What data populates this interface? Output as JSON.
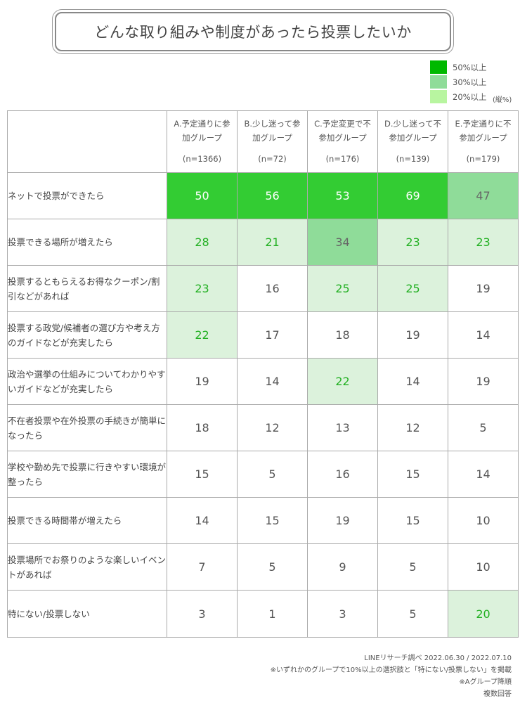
{
  "title": "どんな取り組みや制度があったら投票したいか",
  "legend": {
    "items": [
      {
        "label": "50%以上",
        "color": "#00b900"
      },
      {
        "label": "30%以上",
        "color": "#8fdc99"
      },
      {
        "label": "20%以上",
        "color": "#b8f5a0"
      }
    ],
    "note": "(縦%)"
  },
  "chart_data": {
    "type": "table",
    "unit": "%",
    "columns": [
      {
        "label": "A.予定通りに参加グループ",
        "n": "(n=1366)"
      },
      {
        "label": "B.少し迷って参加グループ",
        "n": "(n=72)"
      },
      {
        "label": "C.予定変更で不参加グループ",
        "n": "(n=176)"
      },
      {
        "label": "D.少し迷って不参加グループ",
        "n": "(n=139)"
      },
      {
        "label": "E.予定通りに不参加グループ",
        "n": "(n=179)"
      }
    ],
    "rows": [
      {
        "label": "ネットで投票ができたら",
        "values": [
          50,
          56,
          53,
          69,
          47
        ]
      },
      {
        "label": "投票できる場所が増えたら",
        "values": [
          28,
          21,
          34,
          23,
          23
        ]
      },
      {
        "label": "投票するともらえるお得なクーポン/割引などがあれば",
        "values": [
          23,
          16,
          25,
          25,
          19
        ]
      },
      {
        "label": "投票する政党/候補者の選び方や考え方のガイドなどが充実したら",
        "values": [
          22,
          17,
          18,
          19,
          14
        ]
      },
      {
        "label": "政治や選挙の仕組みについてわかりやすいガイドなどが充実したら",
        "values": [
          19,
          14,
          22,
          14,
          19
        ]
      },
      {
        "label": "不在者投票や在外投票の手続きが簡単になったら",
        "values": [
          18,
          12,
          13,
          12,
          5
        ]
      },
      {
        "label": "学校や勤め先で投票に行きやすい環境が整ったら",
        "values": [
          15,
          5,
          16,
          15,
          14
        ]
      },
      {
        "label": "投票できる時間帯が増えたら",
        "values": [
          14,
          15,
          19,
          15,
          10
        ]
      },
      {
        "label": "投票場所でお祭りのような楽しいイベントがあれば",
        "values": [
          7,
          5,
          9,
          5,
          10
        ]
      },
      {
        "label": "特にない/投票しない",
        "values": [
          3,
          1,
          3,
          5,
          20
        ]
      }
    ],
    "highlight_cell_colors": {
      "above_50": "#33cc33",
      "above_30": "#8fdc99",
      "above_20": "#dcf2dc"
    },
    "highlight_text_colors": {
      "above_50": "#ffffff",
      "above_30": "#666666",
      "above_20": "#22b022",
      "default": "#555555"
    }
  },
  "footer": {
    "line1": "LINEリサーチ調べ 2022.06.30 / 2022.07.10",
    "line2": "※いずれかのグループで10%以上の選択肢と「特にない/投票しない」を掲載",
    "line3": "※Aグループ降順",
    "line4": "複数回答"
  }
}
